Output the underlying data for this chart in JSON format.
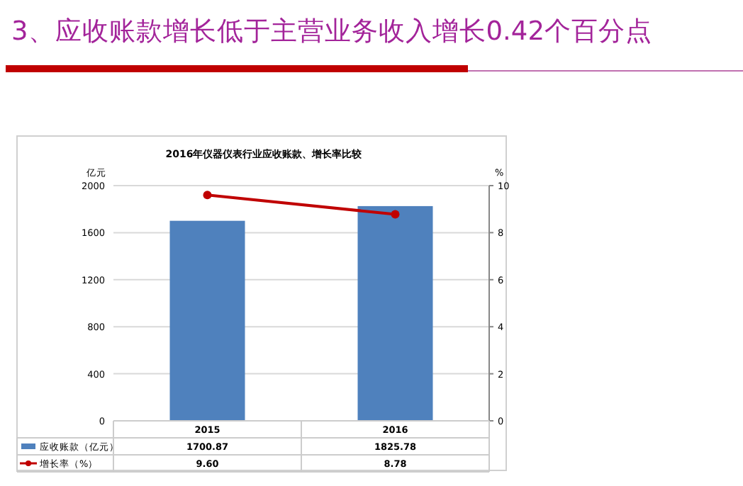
{
  "chart_data": {
    "type": "bar",
    "title": "3、应收账款增长低于主营业务收入增长0.42个百分点",
    "subtitle": "2016年仪器仪表行业应收账款、增长率比较",
    "ylabel": "亿元",
    "y2label": "%",
    "categories": [
      "2015",
      "2016"
    ],
    "series": [
      {
        "name": "应收账款（亿元）",
        "color": "#4f81bd",
        "values": [
          1700.87,
          1825.78
        ],
        "value_labels": [
          "1700.87",
          "1825.78"
        ]
      },
      {
        "name": "增长率（%）",
        "type": "line",
        "axis": "y2",
        "color": "#c00000",
        "marker": "circle",
        "values": [
          9.6,
          8.78
        ],
        "value_labels": [
          "9.60",
          "8.78"
        ]
      }
    ],
    "ylim": [
      0,
      2000
    ],
    "yticks": [
      0,
      400,
      800,
      1200,
      1600,
      2000
    ],
    "y2lim": [
      0,
      10
    ],
    "y2ticks": [
      0,
      2,
      4,
      6,
      8,
      10
    ],
    "grid": "y",
    "legend": "bottom"
  }
}
